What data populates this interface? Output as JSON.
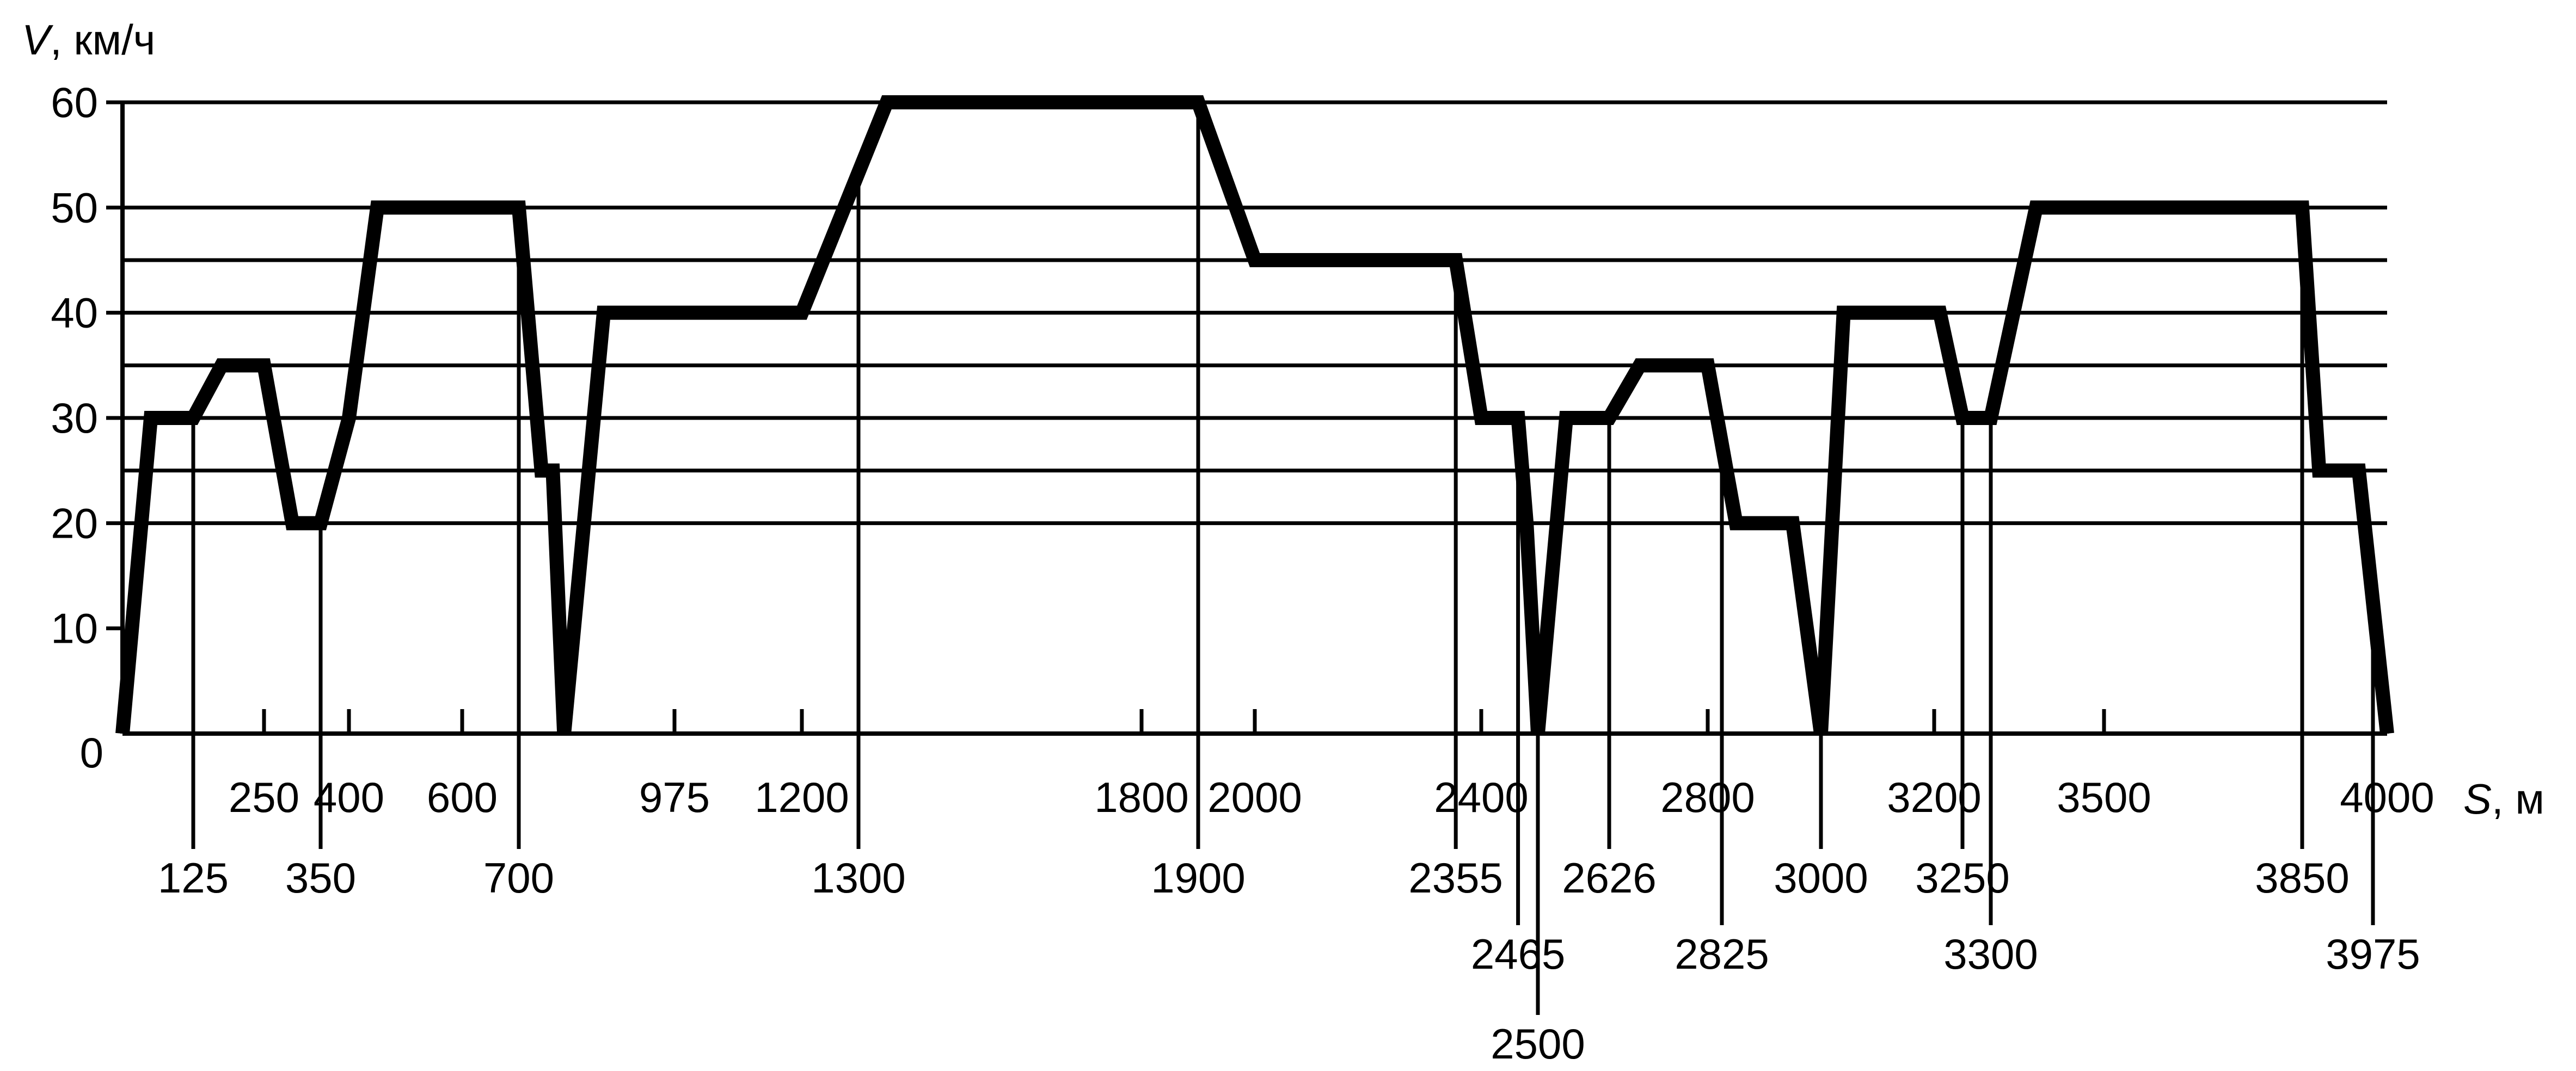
{
  "chart_data": {
    "type": "line",
    "xlabel_var": "S",
    "xlabel_unit": ", м",
    "ylabel_var": "V",
    "ylabel_unit": ", км/ч",
    "yticks": [
      {
        "label": "60",
        "value": 60
      },
      {
        "label": "50",
        "value": 50
      },
      {
        "label": "40",
        "value": 40
      },
      {
        "label": "30",
        "value": 30
      },
      {
        "label": "20",
        "value": 20
      },
      {
        "label": "10",
        "value": 10
      },
      {
        "label": "0",
        "value": 0
      }
    ],
    "gridlines_y": [
      60,
      50,
      45,
      40,
      35,
      30,
      25,
      20
    ],
    "xticks_upper": [
      {
        "label": "250",
        "value": 250
      },
      {
        "label": "400",
        "value": 400
      },
      {
        "label": "600",
        "value": 600
      },
      {
        "label": "975",
        "value": 975
      },
      {
        "label": "1200",
        "value": 1200
      },
      {
        "label": "1800",
        "value": 1800
      },
      {
        "label": "2000",
        "value": 2000
      },
      {
        "label": "2400",
        "value": 2400
      },
      {
        "label": "2800",
        "value": 2800
      },
      {
        "label": "3200",
        "value": 3200
      },
      {
        "label": "3500",
        "value": 3500
      },
      {
        "label": "4000",
        "value": 4000
      }
    ],
    "xticks_lower": [
      {
        "label": "125",
        "value": 125
      },
      {
        "label": "350",
        "value": 350
      },
      {
        "label": "700",
        "value": 700
      },
      {
        "label": "1300",
        "value": 1300
      },
      {
        "label": "1900",
        "value": 1900
      },
      {
        "label": "2355",
        "value": 2355
      },
      {
        "label": "2626",
        "value": 2626
      },
      {
        "label": "3000",
        "value": 3000
      },
      {
        "label": "3250",
        "value": 3250
      },
      {
        "label": "3850",
        "value": 3850
      }
    ],
    "xticks_lowest": [
      {
        "label": "2465",
        "value": 2465
      },
      {
        "label": "2825",
        "value": 2825
      },
      {
        "label": "3300",
        "value": 3300
      },
      {
        "label": "3975",
        "value": 3975
      }
    ],
    "xticks_bottom": [
      {
        "label": "2500",
        "value": 2500
      }
    ],
    "series": [
      {
        "x": [
          0,
          50,
          125,
          175,
          250,
          300,
          350,
          400,
          450,
          700,
          740,
          760,
          780,
          850,
          900,
          1200,
          1350,
          1900,
          2000,
          2355,
          2400,
          2465,
          2480,
          2500,
          2550,
          2626,
          2680,
          2800,
          2850,
          2900,
          2950,
          3000,
          3040,
          3210,
          3250,
          3300,
          3380,
          3850,
          3880,
          3950,
          4000
        ],
        "y": [
          0,
          30,
          30,
          35,
          35,
          20,
          20,
          30,
          50,
          50,
          25,
          25,
          0,
          40,
          40,
          40,
          60,
          60,
          45,
          45,
          30,
          30,
          20,
          0,
          30,
          30,
          35,
          35,
          20,
          20,
          20,
          0,
          40,
          40,
          30,
          30,
          50,
          50,
          25,
          25,
          0
        ]
      }
    ]
  }
}
